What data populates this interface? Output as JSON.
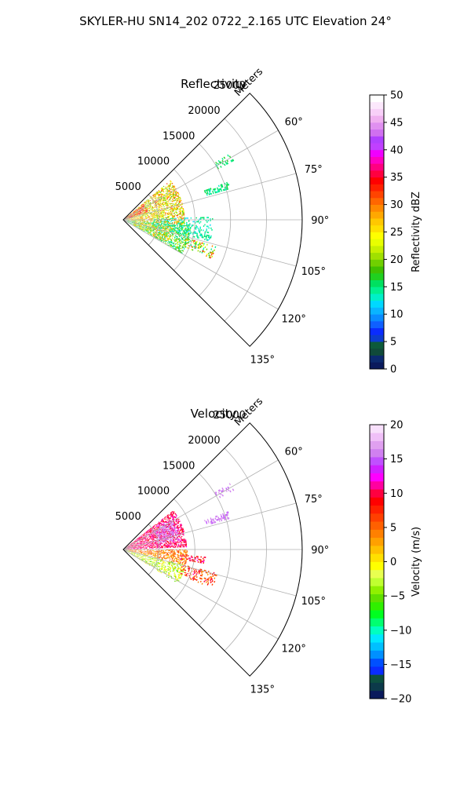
{
  "figure": {
    "title": "SKYLER-HU  SN14_202  0722_2.165 UTC Elevation 24°"
  },
  "chart_data": [
    {
      "type": "polar-sector",
      "title": "Reflectivity",
      "radial_label": "Meters",
      "radial_ticks": [
        5000,
        10000,
        15000,
        20000,
        25000
      ],
      "radial_tick_labels": [
        "5000",
        "10000",
        "15000",
        "20000",
        "25000"
      ],
      "r_max": 25000,
      "theta_range_deg": [
        45,
        135
      ],
      "theta_ticks_deg": [
        60,
        75,
        90,
        105,
        120,
        135
      ],
      "theta_tick_labels": [
        "60°",
        "75°",
        "90°",
        "105°",
        "120°",
        "135°"
      ],
      "grid": true,
      "colorbar": {
        "label": "Reflectivity dBZ",
        "range": [
          0,
          50
        ],
        "ticks": [
          0,
          5,
          10,
          15,
          20,
          25,
          30,
          35,
          40,
          45,
          50
        ],
        "tick_labels": [
          "0",
          "5",
          "10",
          "15",
          "20",
          "25",
          "30",
          "35",
          "40",
          "45",
          "50"
        ],
        "palette": [
          "#0a1a5c",
          "#0b2a6e",
          "#104a3a",
          "#0d5a3a",
          "#0c3ccf",
          "#0a2cff",
          "#0f60ff",
          "#0a8cff",
          "#0ab4ff",
          "#00d8ff",
          "#00f0c8",
          "#00f090",
          "#00e060",
          "#20d020",
          "#40c000",
          "#70d000",
          "#a0e000",
          "#c8f000",
          "#e8ff00",
          "#ffff00",
          "#ffe000",
          "#ffc800",
          "#ffa800",
          "#ff8800",
          "#ff6600",
          "#ff4400",
          "#ff2000",
          "#ff0000",
          "#ff0040",
          "#ff0080",
          "#ff00c0",
          "#f000ff",
          "#c040ff",
          "#b040ff",
          "#d070f0",
          "#e090f0",
          "#f0b0f0",
          "#f8d0f8",
          "#fce8fc",
          "#ffffff"
        ]
      },
      "clusters": [
        {
          "theta": [
            50,
            95
          ],
          "r": [
            200,
            8500
          ],
          "values": [
            18,
            32
          ],
          "density": 0.55
        },
        {
          "theta": [
            95,
            120
          ],
          "r": [
            500,
            9500
          ],
          "values": [
            13,
            22
          ],
          "density": 0.5
        },
        {
          "theta": [
            88,
            104
          ],
          "r": [
            4000,
            12500
          ],
          "values": [
            12,
            16
          ],
          "density": 0.3
        },
        {
          "theta": [
            70,
            74
          ],
          "r": [
            12000,
            15500
          ],
          "values": [
            13,
            17
          ],
          "density": 0.55
        },
        {
          "theta": [
            58,
            62
          ],
          "r": [
            15000,
            17500
          ],
          "values": [
            14,
            17
          ],
          "density": 0.3
        },
        {
          "theta": [
            106,
            114
          ],
          "r": [
            9000,
            13500
          ],
          "values": [
            12,
            34
          ],
          "density": 0.35
        },
        {
          "theta": [
            52,
            72
          ],
          "r": [
            300,
            3500
          ],
          "values": [
            30,
            38
          ],
          "density": 0.5
        },
        {
          "theta": [
            98,
            118
          ],
          "r": [
            1500,
            7000
          ],
          "values": [
            24,
            30
          ],
          "density": 0.3
        }
      ]
    },
    {
      "type": "polar-sector",
      "title": "Velocity",
      "radial_label": "Meters",
      "radial_ticks": [
        5000,
        10000,
        15000,
        20000,
        25000
      ],
      "radial_tick_labels": [
        "5000",
        "10000",
        "15000",
        "20000",
        "25000"
      ],
      "r_max": 25000,
      "theta_range_deg": [
        45,
        135
      ],
      "theta_ticks_deg": [
        60,
        75,
        90,
        105,
        120,
        135
      ],
      "theta_tick_labels": [
        "60°",
        "75°",
        "90°",
        "105°",
        "120°",
        "135°"
      ],
      "grid": true,
      "colorbar": {
        "label": "Velocity (m/s)",
        "range": [
          -20,
          20
        ],
        "ticks": [
          -20,
          -15,
          -10,
          -5,
          0,
          5,
          10,
          15,
          20
        ],
        "tick_labels": [
          "−20",
          "−15",
          "−10",
          "−5",
          "0",
          "5",
          "10",
          "15",
          "20"
        ],
        "palette": [
          "#0a1a5c",
          "#0c3a4a",
          "#0d5040",
          "#0a2cff",
          "#0050ff",
          "#0090ff",
          "#00c0ff",
          "#00e8ff",
          "#00ffc0",
          "#00ff70",
          "#00ff20",
          "#30f000",
          "#60e000",
          "#90f000",
          "#c0ff30",
          "#e8ff50",
          "#ffff00",
          "#ffe000",
          "#ffc000",
          "#ffa000",
          "#ff8000",
          "#ff6000",
          "#ff4000",
          "#ff2000",
          "#ff0000",
          "#ff0040",
          "#ff00a0",
          "#ff00ff",
          "#d020ff",
          "#c050ff",
          "#d080f0",
          "#e0a0f0",
          "#f0c0f8",
          "#f8e0fc"
        ]
      },
      "clusters": [
        {
          "theta": [
            52,
            88
          ],
          "r": [
            200,
            8800
          ],
          "values": [
            9,
            12
          ],
          "density": 0.6
        },
        {
          "theta": [
            58,
            80
          ],
          "r": [
            5000,
            8000
          ],
          "values": [
            15,
            17
          ],
          "density": 0.5
        },
        {
          "theta": [
            90,
            104
          ],
          "r": [
            300,
            9000
          ],
          "values": [
            1,
            7
          ],
          "density": 0.5
        },
        {
          "theta": [
            104,
            122
          ],
          "r": [
            300,
            9000
          ],
          "values": [
            -6,
            1
          ],
          "density": 0.45
        },
        {
          "theta": [
            70,
            74
          ],
          "r": [
            12000,
            15500
          ],
          "values": [
            15,
            17
          ],
          "density": 0.5
        },
        {
          "theta": [
            58,
            62
          ],
          "r": [
            15000,
            17500
          ],
          "values": [
            15,
            17
          ],
          "density": 0.3
        },
        {
          "theta": [
            104,
            114
          ],
          "r": [
            8500,
            13500
          ],
          "values": [
            3,
            11
          ],
          "density": 0.35
        },
        {
          "theta": [
            95,
            100
          ],
          "r": [
            8000,
            11500
          ],
          "values": [
            7,
            12
          ],
          "density": 0.4
        }
      ]
    }
  ]
}
